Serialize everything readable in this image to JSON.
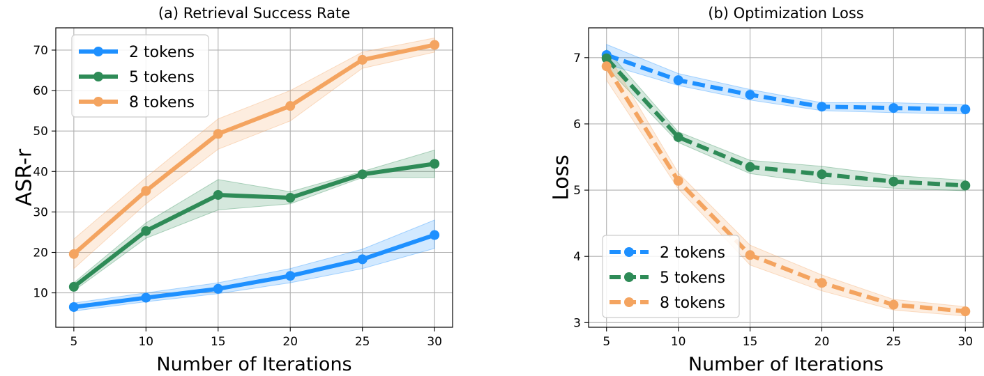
{
  "chart_data": [
    {
      "type": "line",
      "title": "(a) Retrieval Success Rate",
      "xlabel": "Number of Iterations",
      "ylabel": "ASR-r",
      "x": [
        5,
        10,
        15,
        20,
        25,
        30
      ],
      "xticks": [
        5,
        10,
        15,
        20,
        25,
        30
      ],
      "yticks": [
        10,
        20,
        30,
        40,
        50,
        60,
        70
      ],
      "xlim": [
        3.75,
        31.25
      ],
      "ylim": [
        1.5,
        75.5
      ],
      "grid": true,
      "legend_position": "top-left",
      "line_style": "solid",
      "series": [
        {
          "name": "2 tokens",
          "color": "#1E90FF",
          "values": [
            6.5,
            8.8,
            11.0,
            14.2,
            18.3,
            24.3
          ],
          "lower": [
            5.5,
            7.8,
            9.8,
            12.5,
            16.0,
            21.0
          ],
          "upper": [
            7.5,
            10.0,
            12.5,
            16.0,
            20.8,
            28.0
          ]
        },
        {
          "name": "5 tokens",
          "color": "#2E8B57",
          "values": [
            11.5,
            25.3,
            34.2,
            33.5,
            39.3,
            41.9
          ],
          "lower": [
            10.5,
            23.5,
            30.5,
            32.0,
            38.5,
            38.5
          ],
          "upper": [
            12.5,
            27.3,
            38.0,
            35.0,
            40.0,
            45.3
          ]
        },
        {
          "name": "8 tokens",
          "color": "#F4A460",
          "values": [
            19.6,
            35.2,
            49.3,
            56.2,
            67.6,
            71.3
          ],
          "lower": [
            16.0,
            32.0,
            45.5,
            52.5,
            65.5,
            69.5
          ],
          "upper": [
            23.3,
            38.5,
            53.0,
            60.0,
            69.5,
            73.0
          ]
        }
      ]
    },
    {
      "type": "line",
      "title": "(b) Optimization Loss",
      "xlabel": "Number of Iterations",
      "ylabel": "Loss",
      "x": [
        5,
        10,
        15,
        20,
        25,
        30
      ],
      "xticks": [
        5,
        10,
        15,
        20,
        25,
        30
      ],
      "yticks": [
        3,
        4,
        5,
        6,
        7
      ],
      "xlim": [
        3.75,
        31.25
      ],
      "ylim": [
        2.93,
        7.45
      ],
      "grid": true,
      "legend_position": "bottom-left",
      "line_style": "dashed",
      "series": [
        {
          "name": "2 tokens",
          "color": "#1E90FF",
          "values": [
            7.04,
            6.66,
            6.44,
            6.26,
            6.24,
            6.22
          ],
          "lower": [
            6.9,
            6.58,
            6.36,
            6.2,
            6.17,
            6.15
          ],
          "upper": [
            7.2,
            6.76,
            6.52,
            6.32,
            6.32,
            6.29
          ]
        },
        {
          "name": "5 tokens",
          "color": "#2E8B57",
          "values": [
            6.99,
            5.8,
            5.35,
            5.24,
            5.13,
            5.07
          ],
          "lower": [
            6.85,
            5.72,
            5.25,
            5.1,
            5.03,
            4.99
          ],
          "upper": [
            7.12,
            5.88,
            5.45,
            5.36,
            5.22,
            5.15
          ]
        },
        {
          "name": "8 tokens",
          "color": "#F4A460",
          "values": [
            6.87,
            5.14,
            4.02,
            3.6,
            3.27,
            3.17
          ],
          "lower": [
            6.66,
            5.02,
            3.87,
            3.48,
            3.19,
            3.1
          ],
          "upper": [
            7.08,
            5.26,
            4.17,
            3.72,
            3.35,
            3.24
          ]
        }
      ]
    }
  ]
}
